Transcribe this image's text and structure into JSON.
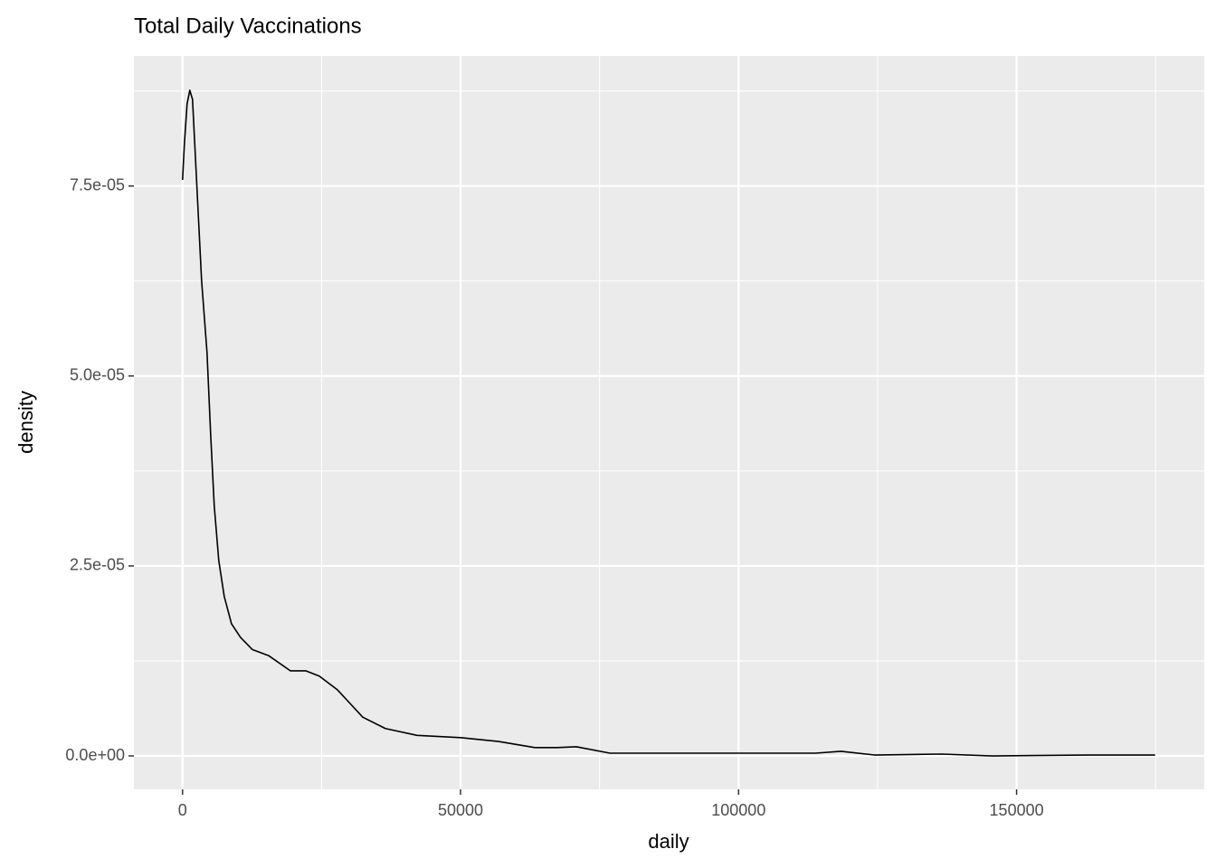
{
  "chart_data": {
    "type": "line",
    "title": "Total Daily Vaccinations",
    "xlabel": "daily",
    "ylabel": "density",
    "x": [
      0,
      326,
      814,
      1303,
      1792,
      2443,
      3420,
      4397,
      5049,
      5700,
      6515,
      7492,
      8795,
      10423,
      12541,
      15472,
      19381,
      22150,
      24593,
      27850,
      32410,
      36482,
      42182,
      50000,
      56840,
      63355,
      67427,
      70847,
      76873,
      84528,
      97557,
      113844,
      118404,
      124430,
      136645,
      145603,
      162705,
      174919
    ],
    "series": [
      {
        "color": "#000000",
        "values": [
          7.58e-05,
          8.05e-05,
          8.58e-05,
          8.76e-05,
          8.64e-05,
          7.69e-05,
          6.26e-05,
          5.31e-05,
          4.24e-05,
          3.29e-05,
          2.57e-05,
          2.1e-05,
          1.74e-05,
          1.56e-05,
          1.4e-05,
          1.32e-05,
          1.12e-05,
          1.12e-05,
          1.05e-05,
          8.7e-06,
          5.1e-06,
          3.6e-06,
          2.7e-06,
          2.4e-06,
          1.9e-06,
          1.1e-06,
          1.1e-06,
          1.2e-06,
          3.6e-07,
          3.6e-07,
          3.6e-07,
          3.6e-07,
          6e-07,
          1.2e-07,
          2.4e-07,
          0,
          1.2e-07,
          1.2e-07
        ]
      }
    ],
    "xlim": [
      -8750,
      183750
    ],
    "ylim": [
      -4.4e-06,
      9.21e-05
    ],
    "xticks": [
      0,
      50000,
      100000,
      150000
    ],
    "yticks": [
      {
        "value": 0,
        "label": "0.0e+00"
      },
      {
        "value": 2.5e-05,
        "label": "2.5e-05"
      },
      {
        "value": 5e-05,
        "label": "5.0e-05"
      },
      {
        "value": 7.5e-05,
        "label": "7.5e-05"
      }
    ],
    "x_minor_grid": [
      25000,
      75000,
      125000,
      175000
    ],
    "y_minor_grid": [
      1.25e-05,
      3.75e-05,
      6.25e-05,
      8.75e-05
    ],
    "grid": true
  }
}
